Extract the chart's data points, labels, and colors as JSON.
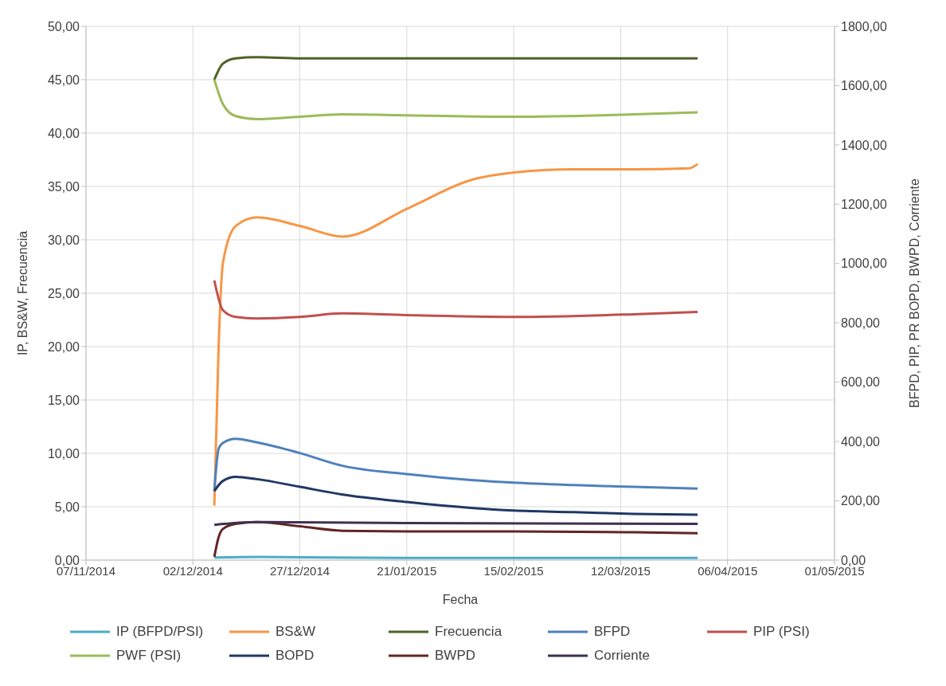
{
  "chart_data": {
    "type": "line",
    "xlabel": "Fecha",
    "ylabel": "IP, BS&W, Frecuencia",
    "y2label": "BFPD, PIP, PR BOPD, BWPD, Corriente",
    "xlim": [
      "2014-11-07",
      "2015-05-01"
    ],
    "xticks": [
      {
        "value": "2014-11-07",
        "label": "07/11/2014"
      },
      {
        "value": "2014-12-02",
        "label": "02/12/2014"
      },
      {
        "value": "2014-12-27",
        "label": "27/12/2014"
      },
      {
        "value": "2015-01-21",
        "label": "21/01/2015"
      },
      {
        "value": "2015-02-15",
        "label": "15/02/2015"
      },
      {
        "value": "2015-03-12",
        "label": "12/03/2015"
      },
      {
        "value": "2015-04-06",
        "label": "06/04/2015"
      },
      {
        "value": "2015-05-01",
        "label": "01/05/2015"
      }
    ],
    "ylim": [
      0,
      50
    ],
    "yticks": [
      {
        "value": 0,
        "label": "0,00"
      },
      {
        "value": 5,
        "label": "5,00"
      },
      {
        "value": 10,
        "label": "10,00"
      },
      {
        "value": 15,
        "label": "15,00"
      },
      {
        "value": 20,
        "label": "20,00"
      },
      {
        "value": 25,
        "label": "25,00"
      },
      {
        "value": 30,
        "label": "30,00"
      },
      {
        "value": 35,
        "label": "35,00"
      },
      {
        "value": 40,
        "label": "40,00"
      },
      {
        "value": 45,
        "label": "45,00"
      },
      {
        "value": 50,
        "label": "50,00"
      }
    ],
    "y2lim": [
      0,
      1800
    ],
    "y2ticks": [
      {
        "value": 0,
        "label": "0,00"
      },
      {
        "value": 200,
        "label": "200,00"
      },
      {
        "value": 400,
        "label": "400,00"
      },
      {
        "value": 600,
        "label": "600,00"
      },
      {
        "value": 800,
        "label": "800,00"
      },
      {
        "value": 1000,
        "label": "1000,00"
      },
      {
        "value": 1200,
        "label": "1200,00"
      },
      {
        "value": 1400,
        "label": "1400,00"
      },
      {
        "value": 1600,
        "label": "1600,00"
      },
      {
        "value": 1800,
        "label": "1800,00"
      }
    ],
    "grid": true,
    "legend": "bottom",
    "marker": "none",
    "line_style": "solid",
    "series": [
      {
        "name": "IP (BFPD/PSI)",
        "color": "#4bacc6",
        "x": [
          "2014-12-07",
          "2014-12-17",
          "2015-01-21",
          "2015-03-30"
        ],
        "values": [
          0.24,
          0.3,
          0.2,
          0.2
        ]
      },
      {
        "name": "BS&W",
        "color": "#f79646",
        "x": [
          "2014-12-07",
          "2014-12-08",
          "2014-12-09",
          "2014-12-12",
          "2014-12-17",
          "2014-12-27",
          "2015-01-06",
          "2015-01-21",
          "2015-02-05",
          "2015-02-15",
          "2015-03-01",
          "2015-03-15",
          "2015-03-28",
          "2015-03-30"
        ],
        "values": [
          5.1,
          19.9,
          27.8,
          31.3,
          32.1,
          31.3,
          30.3,
          32.9,
          35.6,
          36.3,
          36.6,
          36.6,
          36.7,
          37.1
        ]
      },
      {
        "name": "Frecuencia",
        "color": "#4f6228",
        "x": [
          "2014-12-07",
          "2014-12-09",
          "2014-12-12",
          "2014-12-17",
          "2014-12-27",
          "2015-01-21",
          "2015-03-30"
        ],
        "values": [
          45,
          46.5,
          47,
          47.1,
          47,
          47,
          47
        ]
      },
      {
        "name": "BFPD",
        "color": "#4f81bd",
        "axis": "y2",
        "x": [
          "2014-12-07",
          "2014-12-08",
          "2014-12-09",
          "2014-12-12",
          "2014-12-17",
          "2014-12-27",
          "2015-01-06",
          "2015-01-21",
          "2015-02-05",
          "2015-02-15",
          "2015-03-01",
          "2015-03-15",
          "2015-03-30"
        ],
        "values": [
          233,
          375,
          395,
          409,
          397,
          361,
          318,
          290,
          270,
          261,
          253,
          247,
          241
        ]
      },
      {
        "name": "PIP (PSI)",
        "color": "#c0504d",
        "axis": "y2",
        "x": [
          "2014-12-07",
          "2014-12-09",
          "2014-12-12",
          "2014-12-17",
          "2014-12-27",
          "2015-01-06",
          "2015-01-21",
          "2015-02-15",
          "2015-03-15",
          "2015-03-30"
        ],
        "values": [
          943,
          843,
          820,
          815,
          820,
          832,
          826,
          820,
          829,
          837
        ]
      },
      {
        "name": "PWF (PSI)",
        "color": "#9bbb59",
        "axis": "y2",
        "x": [
          "2014-12-07",
          "2014-12-09",
          "2014-12-12",
          "2014-12-17",
          "2014-12-27",
          "2015-01-06",
          "2015-01-21",
          "2015-02-15",
          "2015-03-15",
          "2015-03-30"
        ],
        "values": [
          1620,
          1538,
          1497,
          1487,
          1495,
          1503,
          1500,
          1495,
          1503,
          1510
        ]
      },
      {
        "name": "BOPD",
        "color": "#1f3864",
        "axis": "y2",
        "x": [
          "2014-12-07",
          "2014-12-09",
          "2014-12-12",
          "2014-12-17",
          "2014-12-27",
          "2015-01-06",
          "2015-01-21",
          "2015-02-05",
          "2015-02-15",
          "2015-03-01",
          "2015-03-15",
          "2015-03-30"
        ],
        "values": [
          233,
          267,
          281,
          273,
          247,
          221,
          196,
          176,
          167,
          162,
          156,
          153
        ]
      },
      {
        "name": "BWPD",
        "color": "#632523",
        "axis": "y2",
        "x": [
          "2014-12-07",
          "2014-12-08",
          "2014-12-09",
          "2014-12-12",
          "2014-12-17",
          "2014-12-27",
          "2015-01-06",
          "2015-01-21",
          "2015-02-15",
          "2015-03-15",
          "2015-03-30"
        ],
        "values": [
          11,
          77,
          105,
          122,
          128,
          114,
          99,
          97,
          97,
          94,
          91
        ]
      },
      {
        "name": "Corriente",
        "color": "#403151",
        "axis": "y2",
        "x": [
          "2014-12-07",
          "2014-12-17",
          "2015-01-21",
          "2015-03-30"
        ],
        "values": [
          119,
          128,
          125,
          122
        ]
      }
    ]
  }
}
